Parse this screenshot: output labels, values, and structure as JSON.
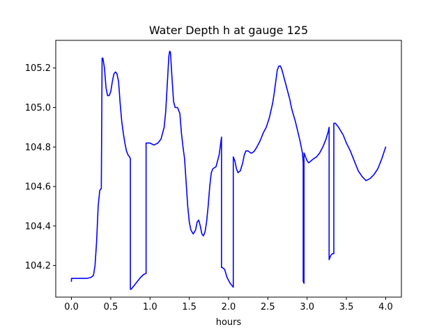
{
  "chart_data": {
    "type": "line",
    "title": "Water Depth h at gauge 125",
    "xlabel": "hours",
    "ylabel": "",
    "xlim": [
      -0.2,
      4.2
    ],
    "ylim": [
      104.04,
      105.34
    ],
    "xticks": [
      0.0,
      0.5,
      1.0,
      1.5,
      2.0,
      2.5,
      3.0,
      3.5,
      4.0
    ],
    "xtick_labels": [
      "0.0",
      "0.5",
      "1.0",
      "1.5",
      "2.0",
      "2.5",
      "3.0",
      "3.5",
      "4.0"
    ],
    "yticks": [
      104.2,
      104.4,
      104.6,
      104.8,
      105.0,
      105.2
    ],
    "ytick_labels": [
      "104.2",
      "104.4",
      "104.6",
      "104.8",
      "105.0",
      "105.2"
    ],
    "grid": false,
    "legend": "none",
    "series": [
      {
        "color": "#0000ff",
        "x": [
          0.0,
          0.0,
          0.05,
          0.1,
          0.2,
          0.25,
          0.28,
          0.3,
          0.32,
          0.34,
          0.36,
          0.38,
          0.39,
          0.39,
          0.4,
          0.42,
          0.44,
          0.46,
          0.48,
          0.5,
          0.52,
          0.54,
          0.56,
          0.58,
          0.6,
          0.62,
          0.64,
          0.66,
          0.68,
          0.7,
          0.72,
          0.74,
          0.75,
          0.75,
          0.76,
          0.8,
          0.84,
          0.88,
          0.92,
          0.95,
          0.95,
          1.0,
          1.05,
          1.1,
          1.14,
          1.18,
          1.2,
          1.22,
          1.24,
          1.25,
          1.26,
          1.28,
          1.3,
          1.32,
          1.35,
          1.38,
          1.4,
          1.42,
          1.44,
          1.46,
          1.48,
          1.5,
          1.52,
          1.55,
          1.58,
          1.6,
          1.62,
          1.64,
          1.66,
          1.68,
          1.7,
          1.72,
          1.74,
          1.76,
          1.78,
          1.8,
          1.84,
          1.88,
          1.9,
          1.91,
          1.91,
          1.92,
          1.95,
          1.98,
          2.02,
          2.06,
          2.06,
          2.08,
          2.1,
          2.12,
          2.15,
          2.18,
          2.2,
          2.22,
          2.25,
          2.28,
          2.3,
          2.33,
          2.36,
          2.4,
          2.44,
          2.48,
          2.52,
          2.56,
          2.58,
          2.6,
          2.62,
          2.64,
          2.66,
          2.68,
          2.7,
          2.72,
          2.74,
          2.76,
          2.78,
          2.8,
          2.82,
          2.85,
          2.88,
          2.91,
          2.94,
          2.95,
          2.95,
          2.96,
          2.96,
          2.98,
          3.0,
          3.02,
          3.05,
          3.08,
          3.12,
          3.16,
          3.2,
          3.24,
          3.27,
          3.28,
          3.28,
          3.3,
          3.32,
          3.34,
          3.34,
          3.36,
          3.38,
          3.4,
          3.43,
          3.46,
          3.5,
          3.55,
          3.6,
          3.65,
          3.7,
          3.75,
          3.8,
          3.85,
          3.9,
          3.95,
          4.0
        ],
        "y": [
          104.12,
          104.135,
          104.135,
          104.135,
          104.135,
          104.14,
          104.15,
          104.2,
          104.32,
          104.5,
          104.58,
          104.59,
          105.25,
          105.25,
          105.25,
          105.2,
          105.1,
          105.06,
          105.06,
          105.08,
          105.13,
          105.17,
          105.18,
          105.17,
          105.13,
          105.02,
          104.93,
          104.87,
          104.82,
          104.78,
          104.76,
          104.75,
          104.74,
          104.08,
          104.08,
          104.1,
          104.12,
          104.14,
          104.155,
          104.16,
          104.82,
          104.82,
          104.81,
          104.82,
          104.84,
          104.9,
          104.98,
          105.12,
          105.26,
          105.285,
          105.28,
          105.15,
          105.03,
          105.0,
          105.0,
          104.97,
          104.87,
          104.8,
          104.74,
          104.62,
          104.5,
          104.42,
          104.38,
          104.36,
          104.38,
          104.42,
          104.43,
          104.4,
          104.36,
          104.35,
          104.37,
          104.42,
          104.5,
          104.6,
          104.67,
          104.69,
          104.7,
          104.76,
          104.82,
          104.85,
          104.19,
          104.19,
          104.18,
          104.14,
          104.11,
          104.09,
          104.75,
          104.73,
          104.69,
          104.67,
          104.68,
          104.72,
          104.76,
          104.78,
          104.78,
          104.77,
          104.77,
          104.78,
          104.8,
          104.83,
          104.87,
          104.9,
          104.95,
          105.02,
          105.07,
          105.13,
          105.19,
          105.21,
          105.21,
          105.19,
          105.16,
          105.13,
          105.1,
          105.07,
          105.04,
          105.0,
          104.97,
          104.93,
          104.88,
          104.83,
          104.77,
          104.72,
          104.12,
          104.11,
          104.77,
          104.75,
          104.73,
          104.72,
          104.73,
          104.74,
          104.75,
          104.77,
          104.8,
          104.84,
          104.88,
          104.9,
          104.23,
          104.25,
          104.26,
          104.26,
          104.92,
          104.92,
          104.91,
          104.9,
          104.88,
          104.86,
          104.82,
          104.78,
          104.73,
          104.68,
          104.65,
          104.63,
          104.64,
          104.66,
          104.69,
          104.74,
          104.8
        ]
      }
    ]
  }
}
